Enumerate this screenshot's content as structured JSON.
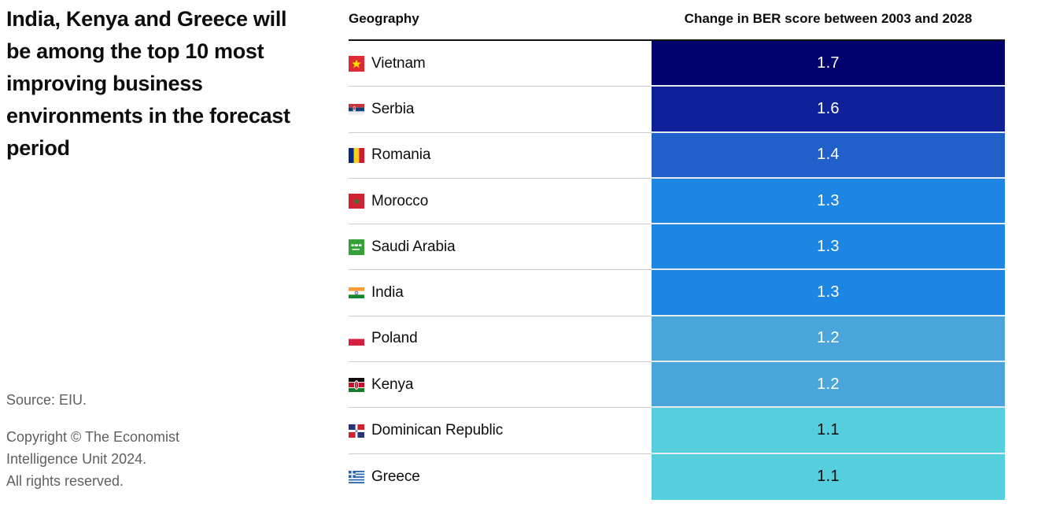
{
  "left_panel": {
    "title": "India, Kenya and Greece will be among the top 10 most improving business environments in the forecast period",
    "source": "Source: EIU.",
    "copyright": "Copyright © The Economist\nIntelligence Unit 2024.\nAll rights reserved."
  },
  "table": {
    "geography_header": "Geography",
    "value_header": "Change in BER score between 2003 and 2028",
    "rows": [
      {
        "id": "vietnam",
        "country": "Vietnam",
        "value": "1.7",
        "color": "#02026f",
        "text_color": "#ffffff"
      },
      {
        "id": "serbia",
        "country": "Serbia",
        "value": "1.6",
        "color": "#0e2199",
        "text_color": "#ffffff"
      },
      {
        "id": "romania",
        "country": "Romania",
        "value": "1.4",
        "color": "#2160c9",
        "text_color": "#ffffff"
      },
      {
        "id": "morocco",
        "country": "Morocco",
        "value": "1.3",
        "color": "#1d85e2",
        "text_color": "#ffffff"
      },
      {
        "id": "saudi-arabia",
        "country": "Saudi Arabia",
        "value": "1.3",
        "color": "#1d85e2",
        "text_color": "#ffffff"
      },
      {
        "id": "india",
        "country": "India",
        "value": "1.3",
        "color": "#1d85e2",
        "text_color": "#ffffff"
      },
      {
        "id": "poland",
        "country": "Poland",
        "value": "1.2",
        "color": "#4aa5da",
        "text_color": "#ffffff"
      },
      {
        "id": "kenya",
        "country": "Kenya",
        "value": "1.2",
        "color": "#4aa5da",
        "text_color": "#ffffff"
      },
      {
        "id": "dominican-republic",
        "country": "Dominican Republic",
        "value": "1.1",
        "color": "#55cedd",
        "text_color": "#0d0d0d"
      },
      {
        "id": "greece",
        "country": "Greece",
        "value": "1.1",
        "color": "#55cedd",
        "text_color": "#0d0d0d"
      }
    ]
  },
  "chart_data": {
    "type": "table",
    "title": "India, Kenya and Greece will be among the top 10 most improving business environments in the forecast period",
    "columns": [
      "Geography",
      "Change in BER score between 2003 and 2028"
    ],
    "categories": [
      "Vietnam",
      "Serbia",
      "Romania",
      "Morocco",
      "Saudi Arabia",
      "India",
      "Poland",
      "Kenya",
      "Dominican Republic",
      "Greece"
    ],
    "values": [
      1.7,
      1.6,
      1.4,
      1.3,
      1.3,
      1.3,
      1.2,
      1.2,
      1.1,
      1.1
    ],
    "source": "Source: EIU.",
    "value_range_colors": {
      "1.7": "#02026f",
      "1.6": "#0e2199",
      "1.4": "#2160c9",
      "1.3": "#1d85e2",
      "1.2": "#4aa5da",
      "1.1": "#55cedd"
    },
    "legend_position": "none",
    "grid": false
  }
}
